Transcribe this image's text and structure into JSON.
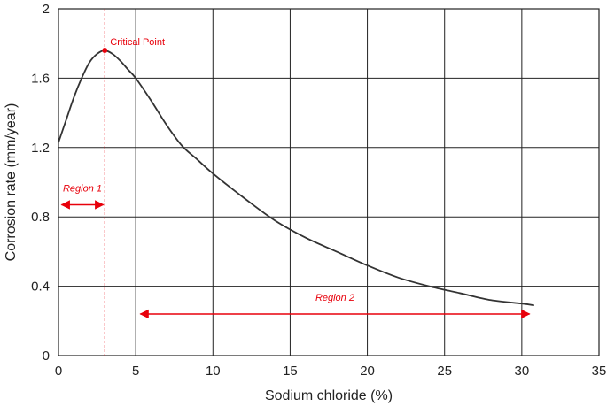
{
  "chart_data": {
    "type": "line",
    "title": "",
    "xlabel": "Sodium chloride (%)",
    "ylabel": "Corrosion rate (mm/year)",
    "xlim": [
      0,
      35
    ],
    "ylim": [
      0,
      2
    ],
    "x_ticks": [
      0,
      5,
      10,
      15,
      20,
      25,
      30,
      35
    ],
    "y_ticks": [
      0,
      0.4,
      0.8,
      1.2,
      1.6,
      2
    ],
    "y_tick_labels": [
      "0",
      "0.4",
      "0.8",
      "1.2",
      "1.6",
      "2"
    ],
    "grid": true,
    "legend": "none",
    "series": [
      {
        "color": "#333333",
        "x": [
          0,
          0.5,
          1,
          1.5,
          2,
          2.5,
          3,
          3.5,
          4,
          4.5,
          5,
          6,
          7,
          8,
          9,
          10,
          12,
          14,
          16,
          18,
          20,
          22,
          24,
          26,
          28,
          30,
          30.8
        ],
        "y": [
          1.23,
          1.36,
          1.49,
          1.6,
          1.69,
          1.74,
          1.76,
          1.74,
          1.7,
          1.65,
          1.6,
          1.47,
          1.33,
          1.21,
          1.13,
          1.05,
          0.91,
          0.78,
          0.68,
          0.6,
          0.52,
          0.45,
          0.4,
          0.36,
          0.32,
          0.3,
          0.29
        ]
      }
    ],
    "critical_point": {
      "x": 3,
      "y": 1.76,
      "label": "Critical Point",
      "color": "#e8000b"
    },
    "regions": [
      {
        "label": "Region 1",
        "x_start": 0.2,
        "x_end": 2.9,
        "y": 0.87,
        "color": "#e8000b"
      },
      {
        "label": "Region 2",
        "x_start": 5.3,
        "x_end": 30.5,
        "y": 0.24,
        "color": "#e8000b"
      }
    ]
  }
}
